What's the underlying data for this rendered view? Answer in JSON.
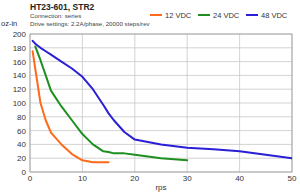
{
  "chart_data": {
    "type": "line",
    "title": "HT23-601, STR2",
    "subtitle": [
      "Connection: series",
      "Drive settings: 2.2A/phase, 20000 steps/rev"
    ],
    "x_label": "rps",
    "y_label": "oz-in",
    "x": [
      0.5,
      1,
      2,
      3,
      4,
      6,
      8,
      10,
      12,
      14,
      15,
      16,
      18,
      20,
      25,
      30,
      35,
      40,
      45,
      50
    ],
    "series": [
      {
        "name": "12 VDC",
        "color": "#ff6a1a",
        "values": [
          175,
          150,
          100,
          75,
          57,
          40,
          26,
          17,
          14,
          14,
          14,
          null,
          null,
          null,
          null,
          null,
          null,
          null,
          null,
          null
        ]
      },
      {
        "name": "24 VDC",
        "color": "#1e8f1e",
        "values": [
          null,
          182,
          162,
          140,
          118,
          95,
          75,
          55,
          40,
          30,
          29,
          27,
          27,
          25,
          20,
          17,
          null,
          null,
          null,
          null
        ]
      },
      {
        "name": "48 VDC",
        "color": "#2a1fd6",
        "values": [
          190,
          186,
          180,
          175,
          170,
          160,
          150,
          138,
          120,
          97,
          85,
          75,
          58,
          47,
          40,
          35,
          33,
          30,
          25,
          20
        ]
      }
    ],
    "xlim": [
      0,
      50
    ],
    "xticks": [
      0,
      10,
      20,
      30,
      40,
      50
    ],
    "ylim": [
      0,
      200
    ],
    "yticks": [
      0,
      20,
      40,
      60,
      80,
      100,
      120,
      140,
      160,
      180,
      200
    ],
    "grid": true,
    "legend": "top-right"
  }
}
